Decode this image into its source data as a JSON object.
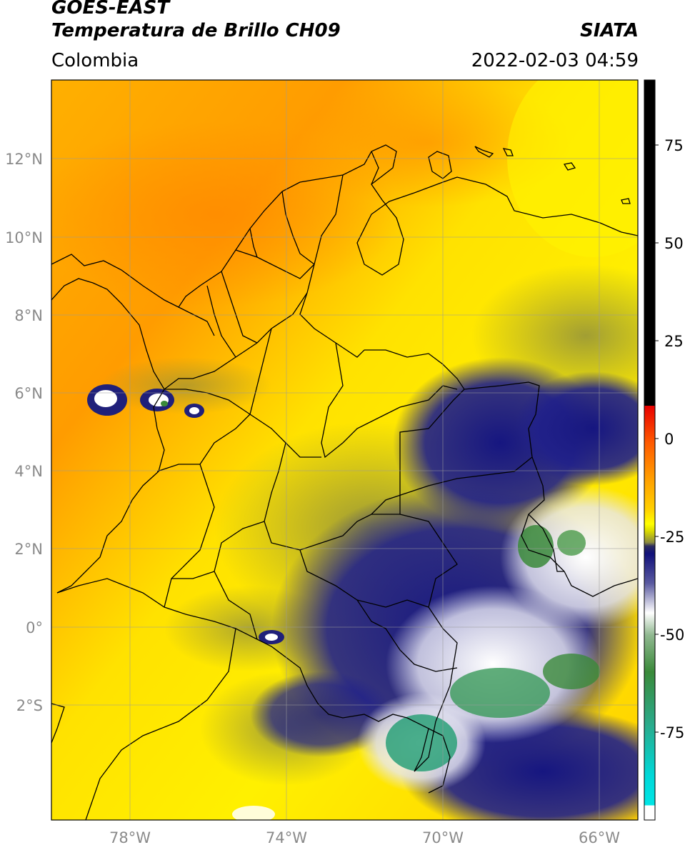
{
  "header": {
    "line1": "GOES-EAST",
    "line2": "Temperatura de Brillo CH09",
    "agency": "SIATA",
    "region": "Colombia",
    "timestamp": "2022-02-03 04:59"
  },
  "axes": {
    "lat_labels": [
      "12°N",
      "10°N",
      "8°N",
      "6°N",
      "4°N",
      "2°N",
      "0°",
      "2°S"
    ],
    "lon_labels": [
      "78°W",
      "74°W",
      "70°W",
      "66°W"
    ]
  },
  "colorbar": {
    "ticks": [
      "75",
      "50",
      "25",
      "0",
      "-25",
      "-50",
      "-75"
    ],
    "colors": {
      "black": "#000000",
      "red": "#ff0000",
      "orange": "#ff9a00",
      "yellow": "#ffff00",
      "olive": "#8a8a35",
      "navy": "#12127a",
      "white": "#ffffff",
      "green": "#3a8a3a",
      "teal": "#2ab09a",
      "cyan": "#00e5e5"
    }
  }
}
